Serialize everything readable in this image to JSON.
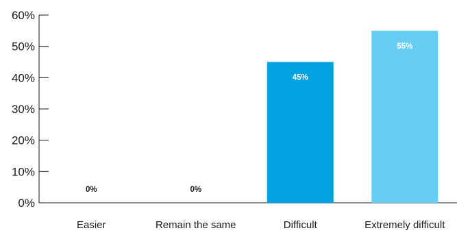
{
  "chart_data": {
    "type": "bar",
    "categories": [
      "Easier",
      "Remain the same",
      "Difficult",
      "Extremely difficult"
    ],
    "values": [
      0,
      0,
      45,
      55
    ],
    "data_labels": [
      "0%",
      "0%",
      "45%",
      "55%"
    ],
    "bar_colors": [
      "#00a3e0",
      "#00a3e0",
      "#00a3e0",
      "#66cdf3"
    ],
    "data_label_colors": [
      "#1a1a1a",
      "#1a1a1a",
      "#ffffff",
      "#ffffff"
    ],
    "ylim": [
      0,
      60
    ],
    "yticks": [
      0,
      10,
      20,
      30,
      40,
      50,
      60
    ],
    "ytick_labels": [
      "0%",
      "10%",
      "20%",
      "30%",
      "40%",
      "50%",
      "60%"
    ],
    "title": "",
    "xlabel": "",
    "ylabel": "",
    "grid": false,
    "legend": "none"
  }
}
